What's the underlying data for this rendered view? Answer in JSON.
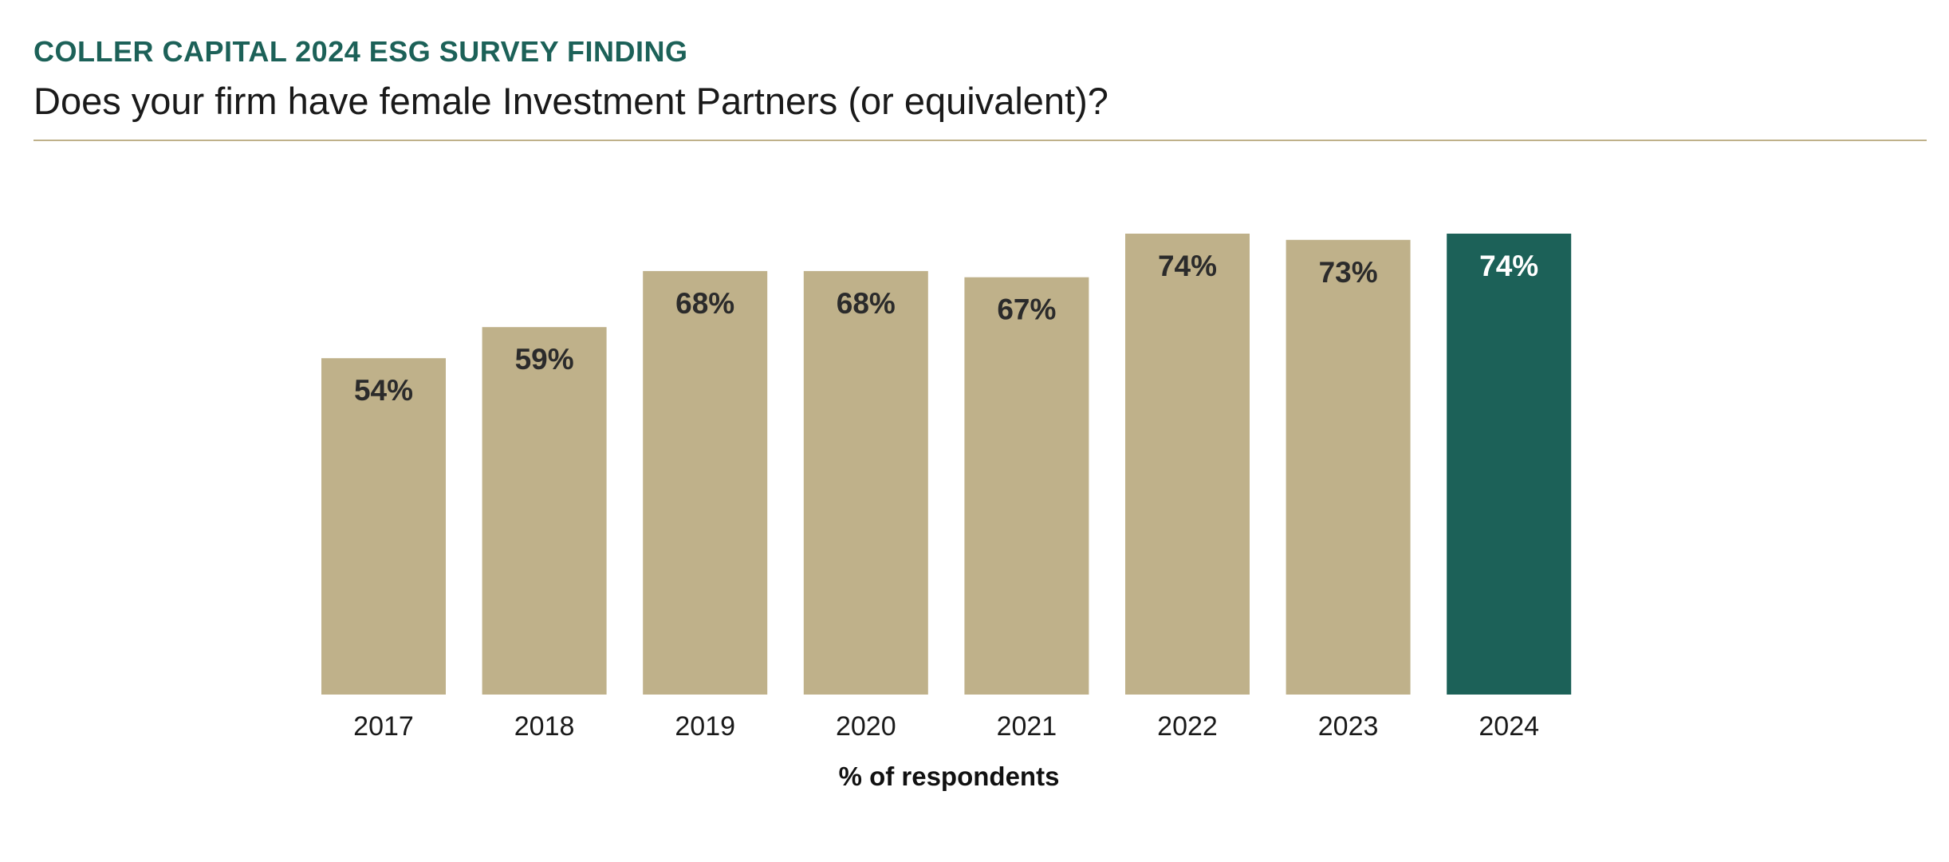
{
  "header": {
    "eyebrow": "COLLER CAPITAL 2024 ESG SURVEY FINDING",
    "question": "Does your firm have female Investment Partners (or equivalent)?"
  },
  "colors": {
    "bar": "#bfb18a",
    "highlight_bar": "#1c6158",
    "label_dark": "#2b2b2b",
    "label_light": "#ffffff",
    "rule": "#bfb18a",
    "eyebrow": "#1c6158"
  },
  "chart_data": {
    "type": "bar",
    "title": "Does your firm have female Investment Partners (or equivalent)?",
    "categories": [
      "2017",
      "2018",
      "2019",
      "2020",
      "2021",
      "2022",
      "2023",
      "2024"
    ],
    "values": [
      54,
      59,
      68,
      68,
      67,
      74,
      73,
      74
    ],
    "value_labels": [
      "54%",
      "59%",
      "68%",
      "68%",
      "67%",
      "74%",
      "73%",
      "74%"
    ],
    "highlight_category": "2024",
    "xlabel": "% of respondents",
    "ylabel": "",
    "ylim": [
      0,
      74
    ],
    "grid": false,
    "legend": "none"
  }
}
